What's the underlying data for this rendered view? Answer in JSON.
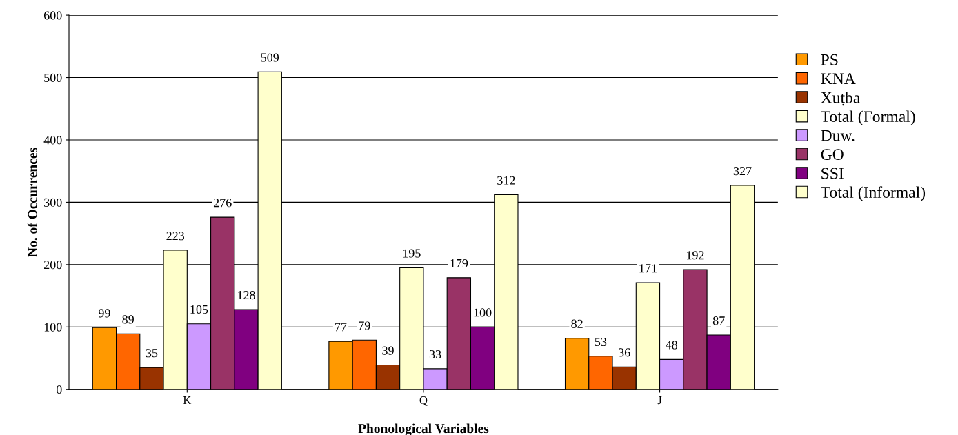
{
  "chart_data": {
    "type": "bar",
    "xlabel": "Phonological Variables",
    "ylabel": "No. of Occurrences",
    "categories": [
      "K",
      "Q",
      "J"
    ],
    "series": [
      {
        "name": "PS",
        "color": "#ff9900",
        "values": [
          99,
          77,
          82
        ]
      },
      {
        "name": "KNA",
        "color": "#ff6600",
        "values": [
          89,
          79,
          53
        ]
      },
      {
        "name": "Xuṭba",
        "color": "#993300",
        "values": [
          35,
          39,
          36
        ]
      },
      {
        "name": "Total (Formal)",
        "color": "#ffffcc",
        "values": [
          223,
          195,
          171
        ]
      },
      {
        "name": "Duw.",
        "color": "#cc99ff",
        "values": [
          105,
          33,
          48
        ]
      },
      {
        "name": "GO",
        "color": "#993366",
        "values": [
          276,
          179,
          192
        ]
      },
      {
        "name": "SSI",
        "color": "#800080",
        "values": [
          128,
          100,
          87
        ]
      },
      {
        "name": "Total (Informal)",
        "color": "#ffffcc",
        "values": [
          509,
          312,
          327
        ]
      }
    ],
    "ylim": [
      0,
      600
    ],
    "yticks": [
      0,
      100,
      200,
      300,
      400,
      500,
      600
    ],
    "grid": "y",
    "legend": "right",
    "data_labels": true
  }
}
